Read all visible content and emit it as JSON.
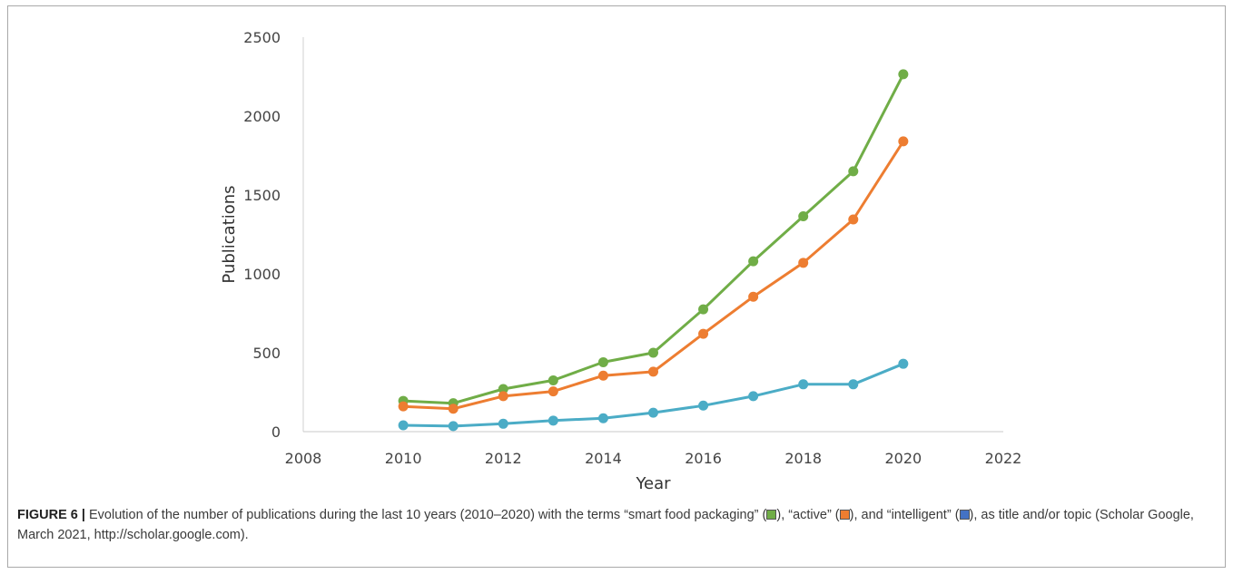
{
  "chart_data": {
    "type": "scatter",
    "mode": "lines+markers",
    "xlabel": "Year",
    "ylabel": "Publications",
    "xlim": [
      2008,
      2022
    ],
    "ylim": [
      0,
      2500
    ],
    "xticks": [
      2008,
      2010,
      2012,
      2014,
      2016,
      2018,
      2020,
      2022
    ],
    "yticks": [
      0,
      500,
      1000,
      1500,
      2000,
      2500
    ],
    "grid": false,
    "legend": "none",
    "x": [
      2010,
      2011,
      2012,
      2013,
      2014,
      2015,
      2016,
      2017,
      2018,
      2019,
      2020
    ],
    "series": [
      {
        "color": "#70ad47",
        "values": [
          195,
          180,
          270,
          325,
          440,
          500,
          775,
          1080,
          1365,
          1650,
          2265
        ]
      },
      {
        "color": "#ed7d31",
        "values": [
          160,
          145,
          225,
          255,
          355,
          380,
          620,
          855,
          1070,
          1345,
          1840
        ]
      },
      {
        "color": "#4bacc6",
        "values": [
          40,
          35,
          50,
          70,
          85,
          120,
          165,
          225,
          300,
          300,
          430
        ]
      }
    ]
  },
  "caption": {
    "label": "FIGURE 6 |",
    "text_1": " Evolution of the number of publications during the last 10 years (2010–2020) with the terms “smart food packaging” (",
    "swatch_1_color": "#70ad47",
    "text_2": "), “active” (",
    "swatch_2_color": "#ed7d31",
    "text_3": "), and “intelligent” (",
    "swatch_3_color": "#4472c4",
    "text_4": "), as title and/or topic (Scholar Google, March 2021, http://scholar.google.com)."
  }
}
